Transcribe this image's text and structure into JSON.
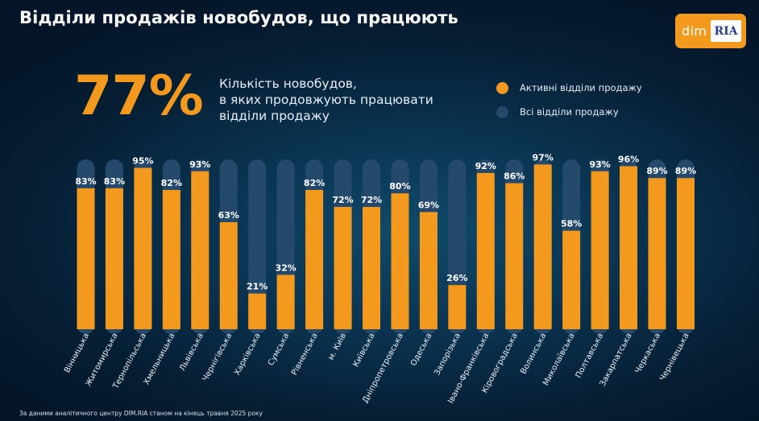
{
  "title": "Відділи продажів новобудов, що працюють",
  "logo": {
    "dim": "dim",
    "ria": "RIA"
  },
  "headline": {
    "value": "77%",
    "lines": [
      "Кількість новобудов,",
      "в яких продовжують працювати",
      "відділи продажу"
    ]
  },
  "legend": [
    {
      "label": "Активні відділи продажу",
      "color": "#f39a1e"
    },
    {
      "label": "Всі відділи продажу",
      "color": "#24496a"
    }
  ],
  "footnote": "За даними аналітичного центру DIM.RIA станом на кінець травня 2025 року",
  "chart_data": {
    "type": "bar",
    "categories": [
      "Вінницька",
      "Житомирська",
      "Тернопільська",
      "Хмельницька",
      "Львівська",
      "Чернігівська",
      "Харківська",
      "Сумська",
      "Рівненська",
      "м. Київ",
      "Київська",
      "Дніпропетровська",
      "Одеська",
      "Запорізька",
      "Івано-Франківська",
      "Кіровоградська",
      "Волинська",
      "Миколаївська",
      "Полтавська",
      "Закарпатська",
      "Черкаська",
      "Чернівецька"
    ],
    "series": [
      {
        "name": "Активні відділи продажу",
        "values": [
          83,
          83,
          95,
          82,
          93,
          63,
          21,
          32,
          82,
          72,
          72,
          80,
          69,
          26,
          92,
          86,
          97,
          58,
          93,
          96,
          89,
          89
        ],
        "color": "#f39a1e"
      },
      {
        "name": "Всі відділи продажу",
        "values": [
          100,
          100,
          100,
          100,
          100,
          100,
          100,
          100,
          100,
          100,
          100,
          100,
          100,
          100,
          100,
          100,
          100,
          100,
          100,
          100,
          100,
          100
        ],
        "color": "#24496a"
      }
    ],
    "data_labels": [
      "83%",
      "83%",
      "95%",
      "82%",
      "93%",
      "63%",
      "21%",
      "32%",
      "82%",
      "72%",
      "72%",
      "80%",
      "69%",
      "26%",
      "92%",
      "86%",
      "97%",
      "58%",
      "93%",
      "96%",
      "89%",
      "89%"
    ],
    "ylim": [
      0,
      100
    ],
    "grid": false,
    "legend_position": "top-right"
  }
}
